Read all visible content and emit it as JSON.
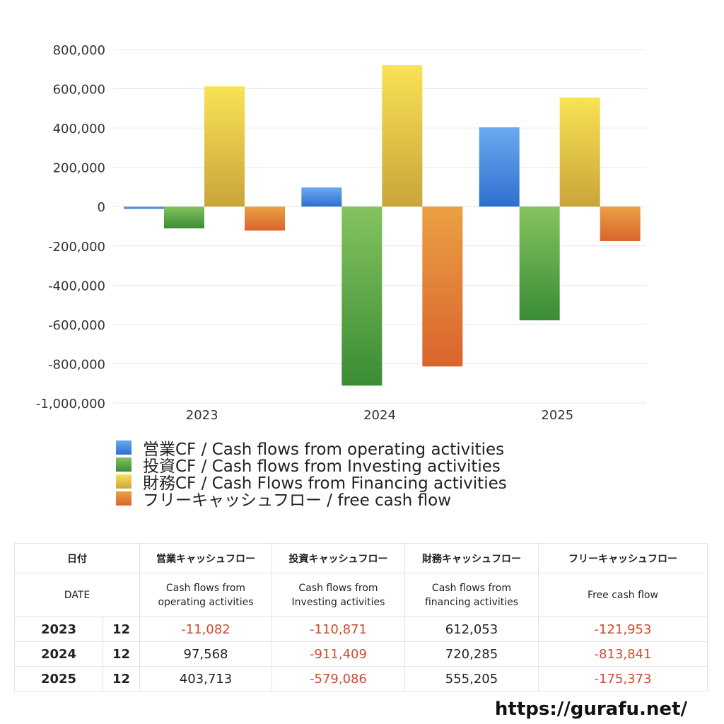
{
  "chart_data": {
    "type": "bar",
    "categories": [
      "2023",
      "2024",
      "2025"
    ],
    "series": [
      {
        "name": "営業CF / Cash flows from operating activities",
        "color": "#3a7fd6",
        "values": [
          -11082,
          97568,
          403713
        ]
      },
      {
        "name": "投資CF / Cash flows from Investing activities",
        "color": "#5aa843",
        "values": [
          -110871,
          -911409,
          -579086
        ]
      },
      {
        "name": "財務CF / Cash Flows from Financing activities",
        "color": "#e6c944",
        "values": [
          612053,
          720285,
          555205
        ]
      },
      {
        "name": "フリーキャッシュフロー / free cash flow",
        "color": "#e07d35",
        "values": [
          -121953,
          -813841,
          -175373
        ]
      }
    ],
    "ylim": [
      -1000000,
      800000
    ],
    "yticks": [
      800000,
      600000,
      400000,
      200000,
      0,
      -200000,
      -400000,
      -600000,
      -800000,
      -1000000
    ],
    "ytick_labels": [
      "800,000",
      "600,000",
      "400,000",
      "200,000",
      "0",
      "-200,000",
      "-400,000",
      "-600,000",
      "-800,000",
      "-1,000,000"
    ],
    "grid": true,
    "legend_position": "bottom"
  },
  "table": {
    "header_jp": [
      "日付",
      "営業キャッシュフロー",
      "投資キャッシュフロー",
      "財務キャッシュフロー",
      "フリーキャッシュフロー"
    ],
    "header_en": [
      "DATE",
      [
        "Cash flows from",
        "operating activities"
      ],
      [
        "Cash flows from",
        "Investing activities"
      ],
      [
        "Cash flows from",
        "financing activities"
      ],
      "Free cash flow"
    ],
    "rows": [
      {
        "year": "2023",
        "month": "12",
        "op": "-11,082",
        "inv": "-110,871",
        "fin": "612,053",
        "free": "-121,953"
      },
      {
        "year": "2024",
        "month": "12",
        "op": "97,568",
        "inv": "-911,409",
        "fin": "720,285",
        "free": "-813,841"
      },
      {
        "year": "2025",
        "month": "12",
        "op": "403,713",
        "inv": "-579,086",
        "fin": "555,205",
        "free": "-175,373"
      }
    ]
  },
  "site_url": "https://gurafu.net/"
}
